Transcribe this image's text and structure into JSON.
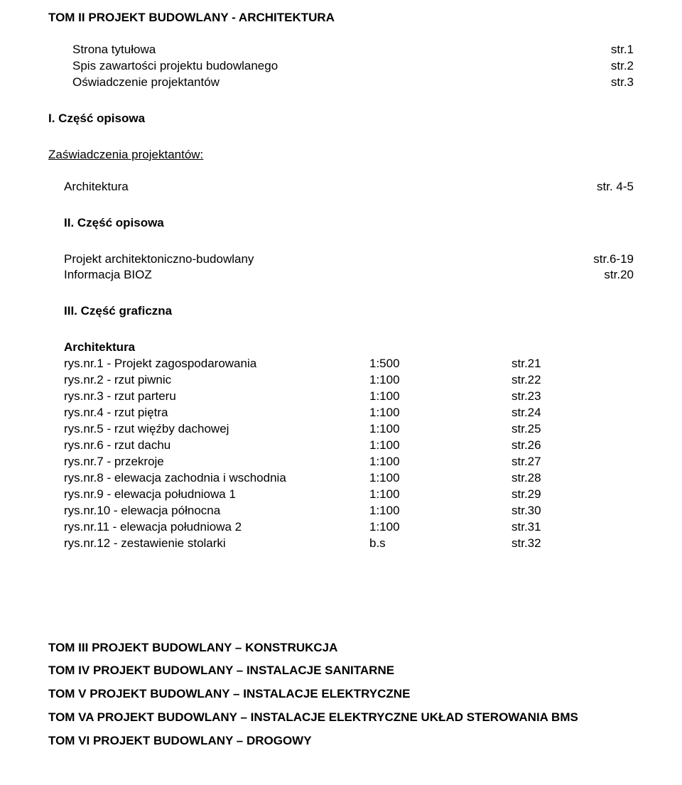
{
  "tom2": {
    "header": "TOM II   PROJEKT BUDOWLANY - ARCHITEKTURA",
    "items": [
      {
        "label": "Strona tytułowa",
        "page": "str.1"
      },
      {
        "label": "Spis zawartości projektu budowlanego",
        "page": "str.2"
      },
      {
        "label": "Oświadczenie projektantów",
        "page": "str.3"
      }
    ],
    "part1": {
      "title": "I. Część  opisowa",
      "sub_title": " Zaświadczenia projektantów:",
      "items": [
        {
          "label": "Architektura",
          "page": "str. 4-5"
        }
      ]
    },
    "part2": {
      "title": "II. Część  opisowa",
      "items": [
        {
          "label": "Projekt architektoniczno-budowlany",
          "page": "str.6-19"
        },
        {
          "label": "Informacja  BIOZ",
          "page": "str.20"
        }
      ]
    },
    "part3": {
      "title": "III. Część  graficzna",
      "group": "Architektura",
      "rows": [
        {
          "label": "rys.nr.1   - Projekt zagospodarowania",
          "scale": "1:500",
          "page": "str.21"
        },
        {
          "label": "rys.nr.2   - rzut piwnic",
          "scale": "1:100",
          "page": "str.22"
        },
        {
          "label": "rys.nr.3   - rzut parteru",
          "scale": "1:100",
          "page": "str.23"
        },
        {
          "label": "rys.nr.4   - rzut piętra",
          "scale": "1:100",
          "page": "str.24"
        },
        {
          "label": "rys.nr.5   - rzut więźby dachowej",
          "scale": "1:100",
          "page": "str.25"
        },
        {
          "label": "rys.nr.6 - rzut dachu",
          "scale": "1:100",
          "page": "str.26"
        },
        {
          "label": "rys.nr.7   - przekroje",
          "scale": "1:100",
          "page": "str.27"
        },
        {
          "label": "rys.nr.8   - elewacja zachodnia i wschodnia",
          "scale": "1:100",
          "page": "str.28"
        },
        {
          "label": "rys.nr.9   - elewacja  południowa 1",
          "scale": "1:100",
          "page": "str.29"
        },
        {
          "label": "rys.nr.10    - elewacja  północna",
          "scale": "1:100",
          "page": "str.30"
        },
        {
          "label": "rys.nr.11    - elewacja  południowa 2",
          "scale": "1:100",
          "page": "str.31"
        },
        {
          "label": "rys.nr.12    - zestawienie stolarki",
          "scale": "b.s",
          "page": "str.32"
        }
      ]
    }
  },
  "toms": [
    "TOM III   PROJEKT BUDOWLANY – KONSTRUKCJA",
    "TOM IV  PROJEKT BUDOWLANY – INSTALACJE SANITARNE",
    "TOM V  PROJEKT BUDOWLANY – INSTALACJE ELEKTRYCZNE",
    "TOM VA  PROJEKT BUDOWLANY – INSTALACJE ELEKTRYCZNE UKŁAD STEROWANIA BMS",
    "TOM VI PROJEKT BUDOWLANY – DROGOWY"
  ]
}
